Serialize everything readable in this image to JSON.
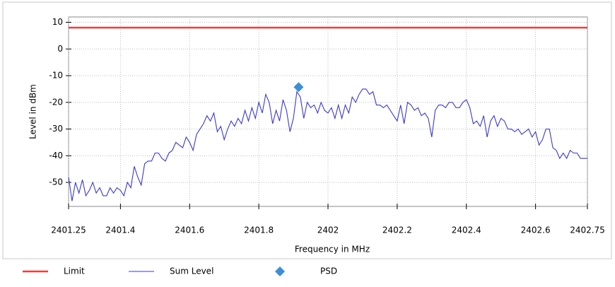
{
  "chart_data": {
    "type": "line",
    "xlabel": "Frequency in MHz",
    "ylabel": "Level in dBm",
    "xlim": [
      2401.25,
      2402.75
    ],
    "xticks": [
      2401.25,
      2401.4,
      2401.6,
      2401.8,
      2402,
      2402.2,
      2402.4,
      2402.6,
      2402.75
    ],
    "ylim": [
      -59,
      12
    ],
    "yticks": [
      10,
      0,
      -10,
      -20,
      -30,
      -40,
      -50
    ],
    "grid": true,
    "legend": "bottom",
    "series": [
      {
        "name": "Limit",
        "color": "#e8413f",
        "kind": "line",
        "x": [
          2401.25,
          2402.75
        ],
        "values": [
          8,
          8
        ]
      },
      {
        "name": "Sum Level",
        "color": "#3a3ad0",
        "kind": "line",
        "x": [
          2401.25,
          2401.26,
          2401.27,
          2401.28,
          2401.29,
          2401.3,
          2401.31,
          2401.32,
          2401.33,
          2401.34,
          2401.35,
          2401.36,
          2401.37,
          2401.38,
          2401.39,
          2401.4,
          2401.41,
          2401.42,
          2401.43,
          2401.44,
          2401.45,
          2401.46,
          2401.47,
          2401.48,
          2401.49,
          2401.5,
          2401.51,
          2401.52,
          2401.53,
          2401.54,
          2401.55,
          2401.56,
          2401.57,
          2401.58,
          2401.59,
          2401.6,
          2401.61,
          2401.62,
          2401.63,
          2401.64,
          2401.65,
          2401.66,
          2401.67,
          2401.68,
          2401.69,
          2401.7,
          2401.71,
          2401.72,
          2401.73,
          2401.74,
          2401.75,
          2401.76,
          2401.77,
          2401.78,
          2401.79,
          2401.8,
          2401.81,
          2401.82,
          2401.83,
          2401.84,
          2401.85,
          2401.86,
          2401.87,
          2401.88,
          2401.89,
          2401.9,
          2401.91,
          2401.92,
          2401.93,
          2401.94,
          2401.95,
          2401.96,
          2401.97,
          2401.98,
          2401.99,
          2402,
          2402.01,
          2402.02,
          2402.03,
          2402.04,
          2402.05,
          2402.06,
          2402.07,
          2402.08,
          2402.09,
          2402.1,
          2402.11,
          2402.12,
          2402.13,
          2402.14,
          2402.15,
          2402.16,
          2402.17,
          2402.18,
          2402.19,
          2402.2,
          2402.21,
          2402.22,
          2402.23,
          2402.24,
          2402.25,
          2402.26,
          2402.27,
          2402.28,
          2402.29,
          2402.3,
          2402.31,
          2402.32,
          2402.33,
          2402.34,
          2402.35,
          2402.36,
          2402.37,
          2402.38,
          2402.39,
          2402.4,
          2402.41,
          2402.42,
          2402.43,
          2402.44,
          2402.45,
          2402.46,
          2402.47,
          2402.48,
          2402.49,
          2402.5,
          2402.51,
          2402.52,
          2402.53,
          2402.54,
          2402.55,
          2402.56,
          2402.57,
          2402.58,
          2402.59,
          2402.6,
          2402.61,
          2402.62,
          2402.63,
          2402.64,
          2402.65,
          2402.66,
          2402.67,
          2402.68,
          2402.69,
          2402.7,
          2402.71,
          2402.72,
          2402.73,
          2402.74,
          2402.75
        ],
        "values": [
          -48,
          -57,
          -50,
          -54,
          -49,
          -55,
          -53,
          -50,
          -54,
          -52,
          -55,
          -55,
          -52,
          -54,
          -52,
          -53,
          -55,
          -50,
          -52,
          -44,
          -48,
          -51,
          -43,
          -42,
          -42,
          -39,
          -39,
          -41,
          -42,
          -39,
          -38,
          -35,
          -36,
          -37,
          -33,
          -35,
          -38,
          -32,
          -30,
          -28,
          -25,
          -27,
          -24,
          -31,
          -29,
          -34,
          -30,
          -27,
          -29,
          -26,
          -28,
          -23,
          -27,
          -22,
          -26,
          -20,
          -24,
          -17,
          -20,
          -28,
          -23,
          -27,
          -19,
          -23,
          -31,
          -26,
          -16,
          -18,
          -26,
          -20,
          -22,
          -21,
          -24,
          -20,
          -23,
          -24,
          -22,
          -26,
          -21,
          -26,
          -21,
          -24,
          -18,
          -20,
          -17,
          -15,
          -15,
          -17,
          -16,
          -21,
          -21,
          -22,
          -21,
          -23,
          -25,
          -27,
          -21,
          -28,
          -20,
          -21,
          -23,
          -22,
          -25,
          -24,
          -26,
          -33,
          -23,
          -21,
          -21,
          -22,
          -20,
          -20,
          -22,
          -22,
          -20,
          -19,
          -22,
          -28,
          -27,
          -29,
          -25,
          -33,
          -27,
          -25,
          -29,
          -26,
          -27,
          -30,
          -30,
          -31,
          -30,
          -32,
          -31,
          -30,
          -33,
          -31,
          -36,
          -34,
          -30,
          -30,
          -37,
          -38,
          -41,
          -39,
          -41,
          -38,
          -39,
          -39,
          -41,
          -41,
          -41
        ]
      },
      {
        "name": "PSD",
        "color": "#3a8fd8",
        "kind": "marker",
        "x": [
          2401.915
        ],
        "values": [
          -14.3
        ]
      }
    ]
  }
}
